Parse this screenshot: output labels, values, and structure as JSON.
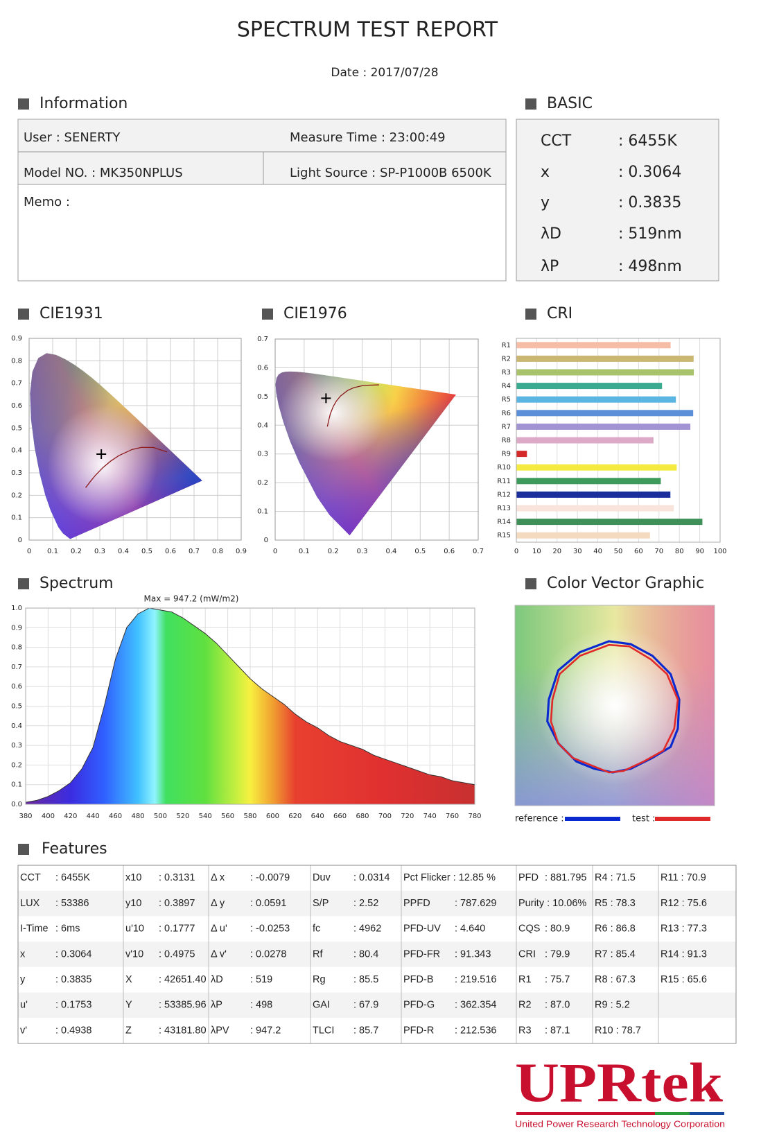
{
  "header": {
    "title": "SPECTRUM TEST REPORT",
    "date": "Date : 2017/07/28"
  },
  "information": {
    "title": "Information",
    "user": "User : SENERTY",
    "measure_time": "Measure Time : 23:00:49",
    "model": "Model NO. : MK350NPLUS",
    "light_source": "Light Source : SP-P1000B 6500K",
    "memo": "Memo :"
  },
  "basic": {
    "title": "BASIC",
    "rows": [
      [
        "CCT",
        ": 6455K"
      ],
      [
        "x",
        ": 0.3064"
      ],
      [
        "y",
        ": 0.3835"
      ],
      [
        "λD",
        ": 519nm"
      ],
      [
        "λP",
        ": 498nm"
      ]
    ]
  },
  "chart_data": [
    {
      "type": "scatter",
      "title": "CIE1931",
      "x": [
        0.3064
      ],
      "values": [
        0.3835
      ],
      "xlim": [
        0,
        0.9
      ],
      "ylim": [
        0,
        0.9
      ],
      "xticks": [
        0,
        0.1,
        0.2,
        0.3,
        0.4,
        0.5,
        0.6,
        0.7,
        0.8,
        0.9
      ],
      "yticks": [
        0,
        0.1,
        0.2,
        0.3,
        0.4,
        0.5,
        0.6,
        0.7,
        0.8,
        0.9
      ],
      "grid": true
    },
    {
      "type": "scatter",
      "title": "CIE1976",
      "x": [
        0.1753
      ],
      "values": [
        0.4938
      ],
      "xlim": [
        0,
        0.7
      ],
      "ylim": [
        0,
        0.7
      ],
      "xticks": [
        0,
        0.1,
        0.2,
        0.3,
        0.4,
        0.5,
        0.6,
        0.7
      ],
      "yticks": [
        0,
        0.1,
        0.2,
        0.3,
        0.4,
        0.5,
        0.6,
        0.7
      ],
      "grid": true
    },
    {
      "type": "bar",
      "title": "CRI",
      "orientation": "horizontal",
      "categories": [
        "R1",
        "R2",
        "R3",
        "R4",
        "R5",
        "R6",
        "R7",
        "R8",
        "R9",
        "R10",
        "R11",
        "R12",
        "R13",
        "R14",
        "R15"
      ],
      "values": [
        75.7,
        87.0,
        87.1,
        71.5,
        78.3,
        86.8,
        85.4,
        67.3,
        5.2,
        78.7,
        70.9,
        75.6,
        77.3,
        91.3,
        65.6
      ],
      "colors": [
        "#f5bca6",
        "#c9b772",
        "#a9c26c",
        "#3aaa90",
        "#5bb5e2",
        "#5b8fd8",
        "#a294d2",
        "#dcaac6",
        "#d42a2a",
        "#f4ea40",
        "#3d9a5a",
        "#1a2f9c",
        "#f8e4da",
        "#3e8f58",
        "#f4dbc0"
      ],
      "xlim": [
        0,
        100
      ],
      "xticks": [
        0,
        10,
        20,
        30,
        40,
        50,
        60,
        70,
        80,
        90,
        100
      ],
      "grid": true
    },
    {
      "type": "area",
      "title": "Spectrum",
      "annotation": "Max = 947.2 (mW/m2)",
      "x": [
        380,
        390,
        400,
        410,
        420,
        430,
        440,
        450,
        460,
        470,
        480,
        490,
        500,
        510,
        520,
        530,
        540,
        550,
        560,
        570,
        580,
        590,
        600,
        610,
        620,
        630,
        640,
        650,
        660,
        670,
        680,
        690,
        700,
        710,
        720,
        730,
        740,
        750,
        760,
        770,
        780
      ],
      "values": [
        0.01,
        0.02,
        0.04,
        0.07,
        0.11,
        0.18,
        0.29,
        0.5,
        0.74,
        0.9,
        0.97,
        1.0,
        0.99,
        0.98,
        0.95,
        0.91,
        0.87,
        0.82,
        0.76,
        0.7,
        0.64,
        0.59,
        0.55,
        0.51,
        0.46,
        0.42,
        0.39,
        0.35,
        0.32,
        0.3,
        0.28,
        0.25,
        0.23,
        0.21,
        0.19,
        0.17,
        0.15,
        0.14,
        0.12,
        0.11,
        0.1
      ],
      "xlim": [
        380,
        780
      ],
      "ylim": [
        0,
        1
      ],
      "xticks": [
        380,
        400,
        420,
        440,
        460,
        480,
        500,
        520,
        540,
        560,
        580,
        600,
        620,
        640,
        660,
        680,
        700,
        720,
        740,
        760,
        780
      ],
      "yticks": [
        {
          "value": 0,
          "label": "0.0"
        },
        0.1,
        0.2,
        0.3,
        0.4,
        0.5,
        0.6,
        0.7,
        0.8,
        0.9,
        {
          "value": 1,
          "label": "1.0"
        }
      ],
      "grid": true
    }
  ],
  "color_vector": {
    "title": "Color Vector Graphic",
    "legend": [
      {
        "label": "reference :",
        "color": "#0a2ad0"
      },
      {
        "label": "test :",
        "color": "#e02a2a"
      }
    ]
  },
  "features": {
    "title": "Features",
    "rows": [
      [
        {
          "label": "CCT",
          "value": ": 6455K"
        },
        {
          "label": "x10",
          "value": ": 0.3131"
        },
        {
          "label": "Δ x",
          "value": ": -0.0079"
        },
        {
          "label": "Duv",
          "value": ": 0.0314"
        },
        "Pct Flicker : 12.85 %",
        {
          "label": "PFD",
          "value": ": 881.795"
        },
        "R4 : 71.5",
        "R11 : 70.9"
      ],
      [
        {
          "label": "LUX",
          "value": ": 53386"
        },
        {
          "label": "y10",
          "value": ": 0.3897"
        },
        {
          "label": "Δ y",
          "value": ": 0.0591"
        },
        {
          "label": "S/P",
          "value": ": 2.52"
        },
        {
          "label": "PPFD",
          "value": ": 787.629"
        },
        "Purity : 10.06%",
        "R5 : 78.3",
        "R12 : 75.6"
      ],
      [
        {
          "label": "I-Time",
          "value": ": 6ms"
        },
        {
          "label": "u'10",
          "value": ": 0.1777"
        },
        {
          "label": "Δ u'",
          "value": ": -0.0253"
        },
        {
          "label": "fc",
          "value": ": 4962"
        },
        {
          "label": "PFD-UV",
          "value": ": 4.640"
        },
        {
          "label": "CQS",
          "value": ": 80.9"
        },
        "R6 : 86.8",
        "R13 : 77.3"
      ],
      [
        {
          "label": "x",
          "value": ": 0.3064"
        },
        {
          "label": "v'10",
          "value": ": 0.4975"
        },
        {
          "label": "Δ v'",
          "value": ": 0.0278"
        },
        {
          "label": "Rf",
          "value": ": 80.4"
        },
        {
          "label": "PFD-FR",
          "value": ": 91.343"
        },
        {
          "label": "CRI",
          "value": ": 79.9"
        },
        "R7 : 85.4",
        "R14 : 91.3"
      ],
      [
        {
          "label": "y",
          "value": ": 0.3835"
        },
        {
          "label": "X",
          "value": ": 42651.40"
        },
        {
          "label": "λD",
          "value": ": 519"
        },
        {
          "label": "Rg",
          "value": ": 85.5"
        },
        {
          "label": "PFD-B",
          "value": ": 219.516"
        },
        {
          "label": "R1",
          "value": ": 75.7"
        },
        "R8 : 67.3",
        "R15 : 65.6"
      ],
      [
        {
          "label": "u'",
          "value": ": 0.1753"
        },
        {
          "label": "Y",
          "value": ": 53385.96"
        },
        {
          "label": "λP",
          "value": ": 498"
        },
        {
          "label": "GAI",
          "value": ": 67.9"
        },
        {
          "label": "PFD-G",
          "value": ": 362.354"
        },
        {
          "label": "R2",
          "value": ": 87.0"
        },
        "R9 : 5.2",
        null
      ],
      [
        {
          "label": "v'",
          "value": ": 0.4938"
        },
        {
          "label": "Z",
          "value": ": 43181.80"
        },
        {
          "label": "λPV",
          "value": ": 947.2"
        },
        {
          "label": "TLCI",
          "value": ": 85.7"
        },
        {
          "label": "PFD-R",
          "value": ": 212.536"
        },
        {
          "label": "R3",
          "value": ": 87.1"
        },
        "R10 : 78.7",
        null
      ]
    ]
  },
  "logo": {
    "name": "UPRtek",
    "tagline": "United Power Research Technology Corporation"
  }
}
